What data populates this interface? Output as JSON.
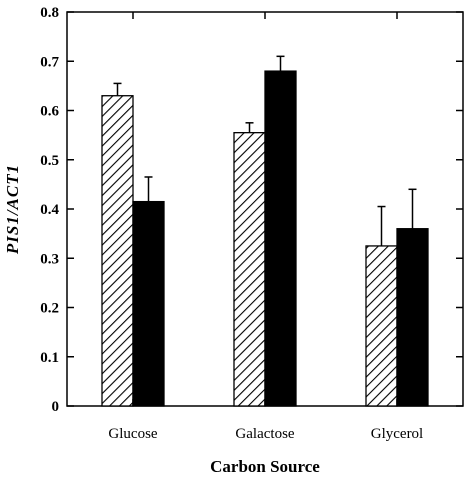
{
  "chart_data": {
    "type": "bar",
    "xlabel": "Carbon Source",
    "ylabel": "PIS1/ACT1",
    "ylim": [
      0,
      0.8
    ],
    "yticks": [
      "0",
      "0.1",
      "0.2",
      "0.3",
      "0.4",
      "0.5",
      "0.6",
      "0.7",
      "0.8"
    ],
    "categories": [
      "Glucose",
      "Galactose",
      "Glycerol"
    ],
    "series": [
      {
        "fill": "hatched",
        "color": "#000000",
        "values": [
          0.63,
          0.555,
          0.325
        ],
        "errors": [
          0.025,
          0.02,
          0.08
        ]
      },
      {
        "fill": "solid",
        "color": "#000000",
        "values": [
          0.415,
          0.68,
          0.36
        ],
        "errors": [
          0.05,
          0.03,
          0.08
        ]
      }
    ],
    "grid": false,
    "legend": "none"
  }
}
